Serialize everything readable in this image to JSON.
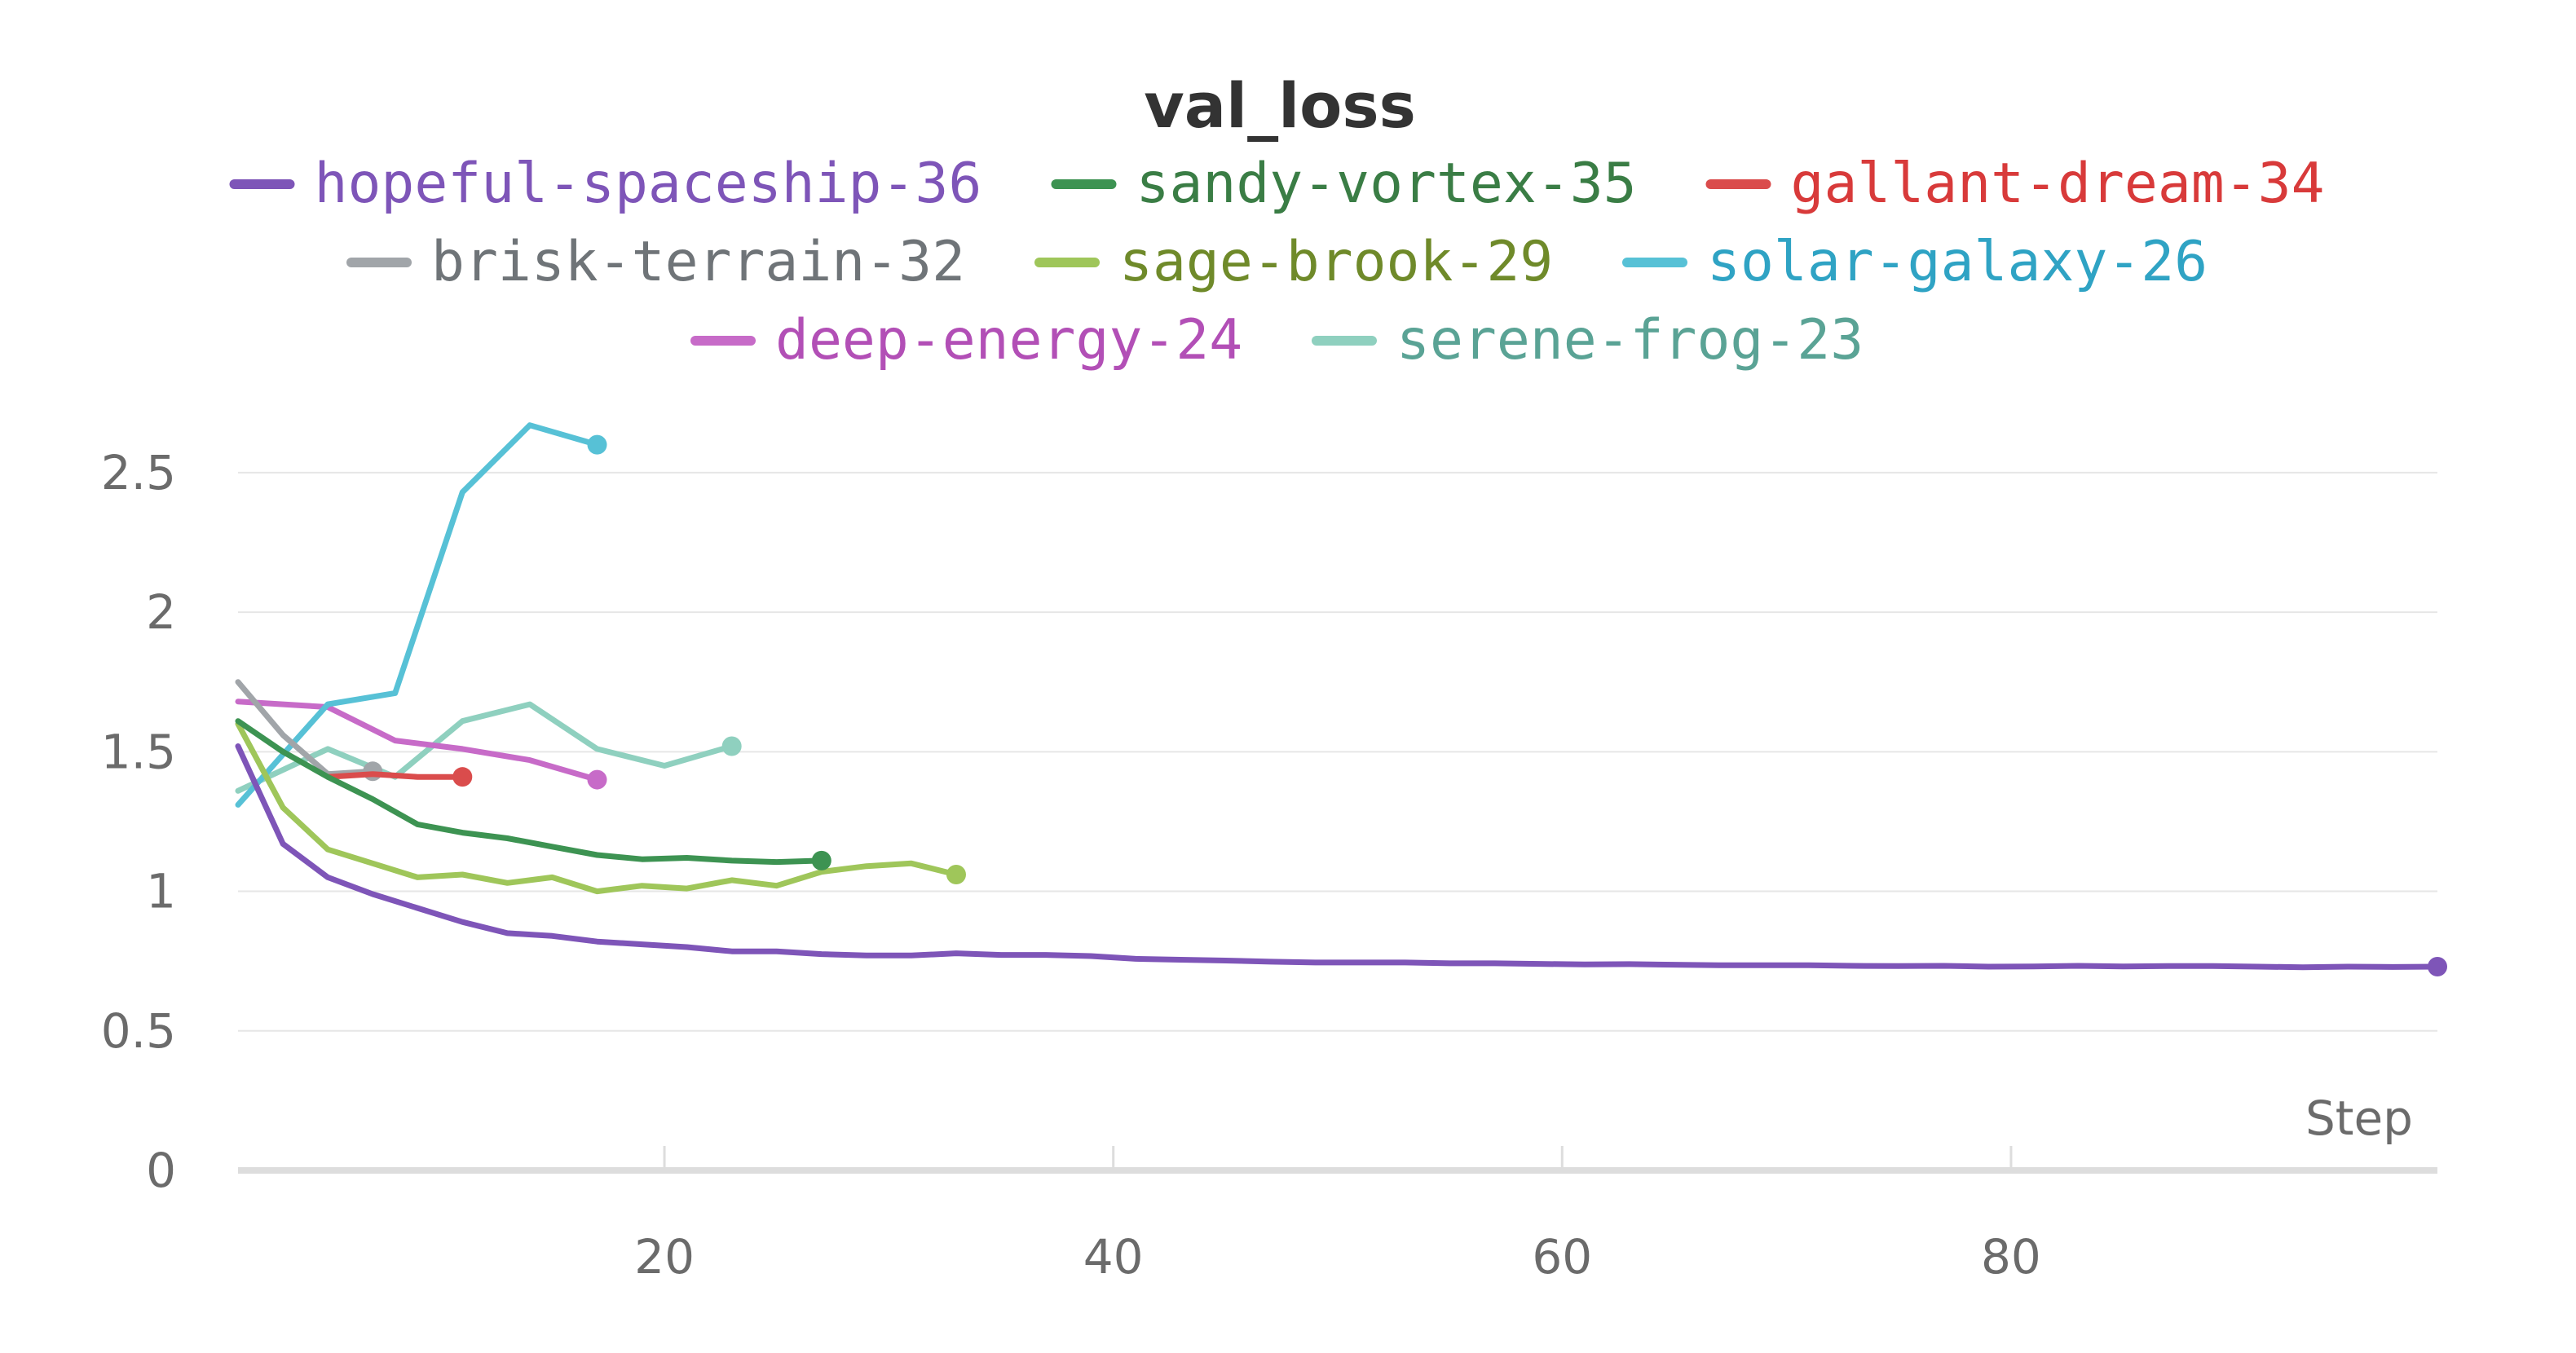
{
  "chart_data": {
    "type": "line",
    "title": "val_loss",
    "xlabel": "Step",
    "ylabel": "",
    "xlim": [
      1,
      99
    ],
    "ylim": [
      0,
      2.78
    ],
    "xticks": [
      20,
      40,
      60,
      80
    ],
    "yticks": [
      0,
      0.5,
      1,
      1.5,
      2,
      2.5
    ],
    "xtick_labels": [
      "20",
      "40",
      "60",
      "80"
    ],
    "ytick_labels": [
      "0",
      "0.5",
      "1",
      "1.5",
      "2",
      "2.5"
    ],
    "grid": "horizontal",
    "legend_position": "top-center",
    "series": [
      {
        "name": "hopeful-spaceship-36",
        "color": "#7e55b8",
        "text_color": "#7e55b8",
        "x": [
          1,
          3,
          5,
          7,
          9,
          11,
          13,
          15,
          17,
          19,
          21,
          23,
          25,
          27,
          29,
          31,
          33,
          35,
          37,
          39,
          41,
          43,
          45,
          47,
          49,
          51,
          53,
          55,
          57,
          59,
          61,
          63,
          65,
          67,
          69,
          71,
          73,
          75,
          77,
          79,
          81,
          83,
          85,
          87,
          89,
          91,
          93,
          95,
          97,
          99
        ],
        "y": [
          1.52,
          1.17,
          1.05,
          0.99,
          0.94,
          0.89,
          0.85,
          0.84,
          0.82,
          0.81,
          0.8,
          0.785,
          0.785,
          0.775,
          0.77,
          0.77,
          0.778,
          0.772,
          0.772,
          0.768,
          0.758,
          0.755,
          0.752,
          0.748,
          0.745,
          0.745,
          0.745,
          0.742,
          0.742,
          0.74,
          0.738,
          0.739,
          0.737,
          0.735,
          0.735,
          0.735,
          0.733,
          0.732,
          0.733,
          0.73,
          0.731,
          0.733,
          0.731,
          0.732,
          0.732,
          0.73,
          0.728,
          0.73,
          0.729,
          0.73
        ]
      },
      {
        "name": "sandy-vortex-35",
        "color": "#3d9352",
        "text_color": "#3a7d45",
        "x": [
          1,
          3,
          5,
          7,
          9,
          11,
          13,
          15,
          17,
          19,
          21,
          23,
          25,
          27
        ],
        "y": [
          1.61,
          1.5,
          1.41,
          1.33,
          1.24,
          1.21,
          1.19,
          1.16,
          1.13,
          1.115,
          1.12,
          1.11,
          1.105,
          1.11
        ]
      },
      {
        "name": "gallant-dream-34",
        "color": "#da4c4c",
        "text_color": "#d83a3a",
        "x": [
          5,
          7,
          9,
          11
        ],
        "y": [
          1.41,
          1.42,
          1.41,
          1.41
        ]
      },
      {
        "name": "brisk-terrain-32",
        "color": "#a1a5a9",
        "text_color": "#6f7478",
        "x": [
          1,
          3,
          5,
          7
        ],
        "y": [
          1.75,
          1.56,
          1.42,
          1.43
        ]
      },
      {
        "name": "sage-brook-29",
        "color": "#9fc65a",
        "text_color": "#6f8a2a",
        "x": [
          1,
          3,
          5,
          7,
          9,
          11,
          13,
          15,
          17,
          19,
          21,
          23,
          25,
          27,
          29,
          31,
          33
        ],
        "y": [
          1.6,
          1.3,
          1.15,
          1.1,
          1.05,
          1.06,
          1.03,
          1.05,
          1.0,
          1.02,
          1.01,
          1.04,
          1.02,
          1.07,
          1.09,
          1.1,
          1.06
        ]
      },
      {
        "name": "solar-galaxy-26",
        "color": "#57c1d6",
        "text_color": "#2fa3c4",
        "x": [
          1,
          5,
          8,
          11,
          14,
          17
        ],
        "y": [
          1.31,
          1.67,
          1.71,
          2.43,
          2.67,
          2.6
        ]
      },
      {
        "name": "deep-energy-24",
        "color": "#c76bc8",
        "text_color": "#b24fb6",
        "x": [
          1,
          5,
          8,
          11,
          14,
          17
        ],
        "y": [
          1.68,
          1.66,
          1.54,
          1.51,
          1.47,
          1.4
        ]
      },
      {
        "name": "serene-frog-23",
        "color": "#8fd0bf",
        "text_color": "#5aa395",
        "x": [
          1,
          5,
          8,
          11,
          14,
          17,
          20,
          23
        ],
        "y": [
          1.36,
          1.51,
          1.41,
          1.61,
          1.67,
          1.51,
          1.45,
          1.52
        ]
      }
    ]
  }
}
